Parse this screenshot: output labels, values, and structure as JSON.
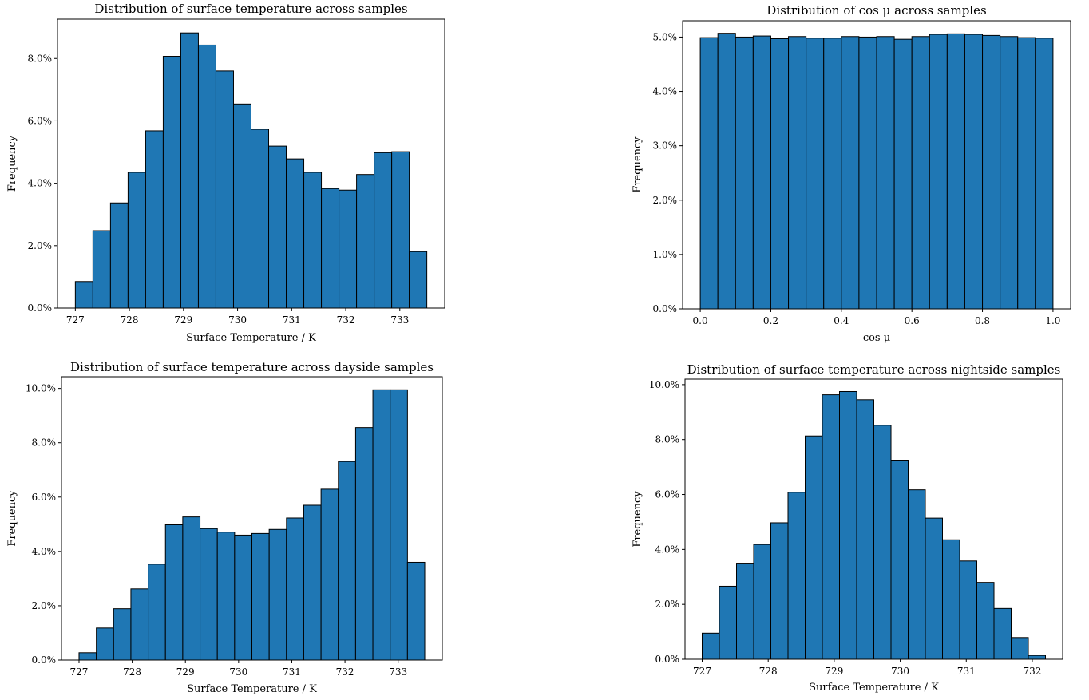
{
  "chart_data": [
    {
      "type": "bar",
      "title": "Distribution of surface temperature across samples",
      "xlabel": "Surface Temperature / K",
      "ylabel": "Frequency",
      "x_range": [
        726.67,
        733.83
      ],
      "ylim": [
        0,
        9.26
      ],
      "x_ticks": [
        727,
        728,
        729,
        730,
        731,
        732,
        733
      ],
      "y_ticks": [
        0,
        2,
        4,
        6,
        8
      ],
      "y_tick_labels": [
        "0.0%",
        "2.0%",
        "4.0%",
        "6.0%",
        "8.0%"
      ],
      "bin_start": 727.0,
      "bin_width": 0.325,
      "values": [
        0.85,
        2.48,
        3.37,
        4.35,
        5.68,
        8.07,
        8.82,
        8.43,
        7.6,
        6.54,
        5.73,
        5.19,
        4.78,
        4.35,
        3.83,
        3.78,
        4.28,
        4.98,
        5.01,
        1.81
      ],
      "grid": false
    },
    {
      "type": "bar",
      "title": "Distribution of cos μ across samples",
      "xlabel": "cos μ",
      "ylabel": "Frequency",
      "x_range": [
        -0.05,
        1.05
      ],
      "ylim": [
        0,
        5.3
      ],
      "x_ticks": [
        0.0,
        0.2,
        0.4,
        0.6,
        0.8,
        1.0
      ],
      "x_tick_labels": [
        "0.0",
        "0.2",
        "0.4",
        "0.6",
        "0.8",
        "1.0"
      ],
      "y_ticks": [
        0,
        1,
        2,
        3,
        4,
        5
      ],
      "y_tick_labels": [
        "0.0%",
        "1.0%",
        "2.0%",
        "3.0%",
        "4.0%",
        "5.0%"
      ],
      "bin_start": 0.0,
      "bin_width": 0.05,
      "values": [
        4.99,
        5.07,
        5.0,
        5.02,
        4.97,
        5.01,
        4.98,
        4.98,
        5.01,
        5.0,
        5.01,
        4.96,
        5.01,
        5.05,
        5.06,
        5.05,
        5.03,
        5.01,
        4.99,
        4.98
      ],
      "grid": false
    },
    {
      "type": "bar",
      "title": "Distribution of surface temperature across dayside samples",
      "xlabel": "Surface Temperature / K",
      "ylabel": "Frequency",
      "x_range": [
        726.67,
        733.83
      ],
      "ylim": [
        0,
        10.43
      ],
      "x_ticks": [
        727,
        728,
        729,
        730,
        731,
        732,
        733
      ],
      "y_ticks": [
        0,
        2,
        4,
        6,
        8,
        10
      ],
      "y_tick_labels": [
        "0.0%",
        "2.0%",
        "4.0%",
        "6.0%",
        "8.0%",
        "10.0%"
      ],
      "bin_start": 727.0,
      "bin_width": 0.325,
      "values": [
        0.27,
        1.18,
        1.89,
        2.62,
        3.53,
        4.98,
        5.27,
        4.84,
        4.71,
        4.6,
        4.66,
        4.81,
        5.23,
        5.7,
        6.29,
        7.31,
        8.56,
        9.95,
        9.95,
        3.6
      ],
      "grid": false
    },
    {
      "type": "bar",
      "title": "Distribution of surface temperature across nightside samples",
      "xlabel": "Surface Temperature / K",
      "ylabel": "Frequency",
      "x_range": [
        726.74,
        732.46
      ],
      "ylim": [
        0,
        10.2
      ],
      "x_ticks": [
        727,
        728,
        729,
        730,
        731,
        732
      ],
      "y_ticks": [
        0,
        2,
        4,
        6,
        8,
        10
      ],
      "y_tick_labels": [
        "0.0%",
        "2.0%",
        "4.0%",
        "6.0%",
        "8.0%",
        "10.0%"
      ],
      "bin_start": 727.0,
      "bin_width": 0.26,
      "values": [
        0.95,
        2.66,
        3.5,
        4.18,
        4.97,
        6.08,
        8.13,
        9.63,
        9.75,
        9.45,
        8.52,
        7.25,
        6.17,
        5.14,
        4.35,
        3.58,
        2.8,
        1.85,
        0.79,
        0.14
      ],
      "grid": false
    }
  ]
}
